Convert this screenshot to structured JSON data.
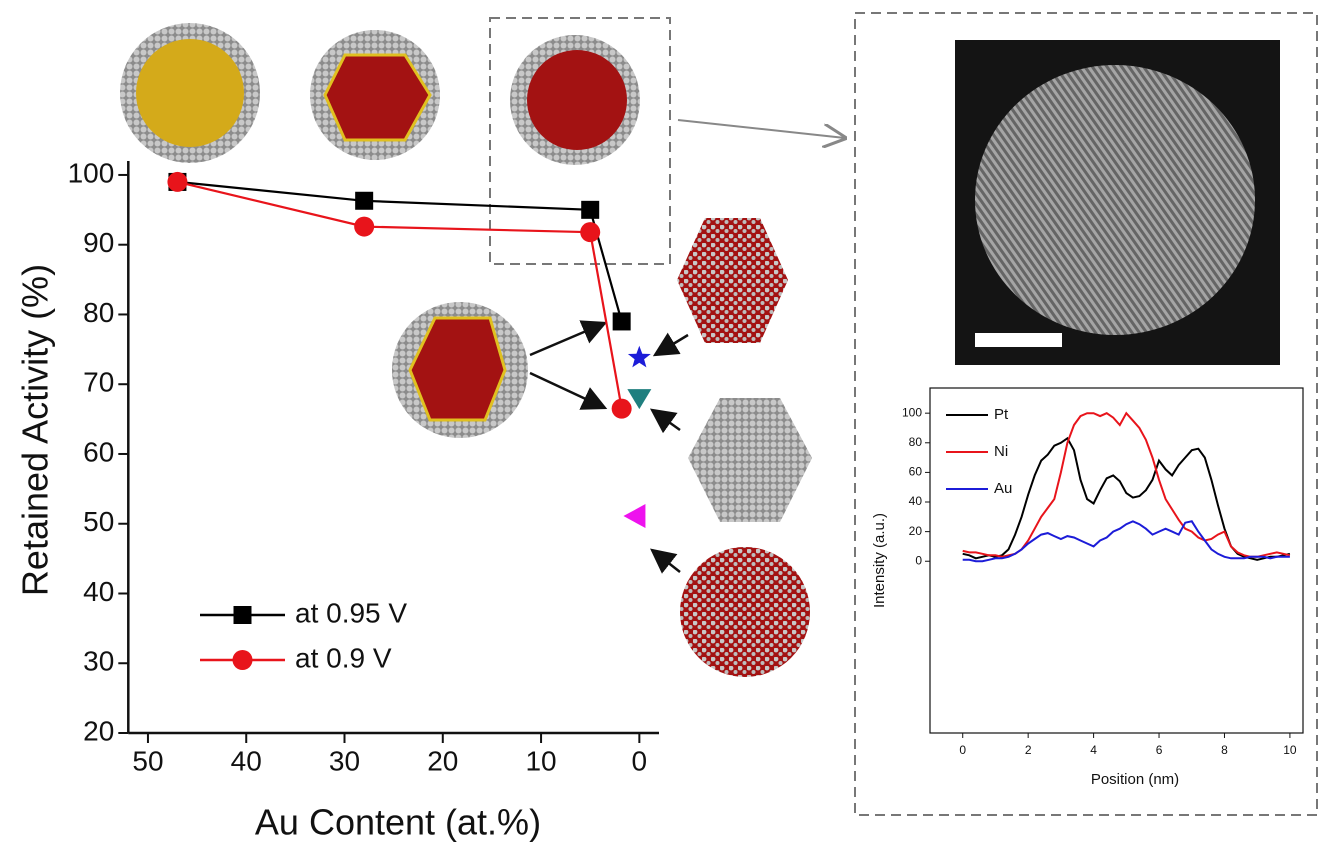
{
  "chart_data": [
    {
      "type": "line",
      "xlabel": "Au Content (at.%)",
      "ylabel": "Retained Activity (%)",
      "x": [
        47,
        28,
        5,
        1.8
      ],
      "series": [
        {
          "name": "at 0.95 V",
          "color": "#000000",
          "marker": "square",
          "values": [
            99,
            96.3,
            95,
            79
          ]
        },
        {
          "name": "at 0.9 V",
          "color": "#e8141b",
          "marker": "circle",
          "values": [
            99,
            92.6,
            91.8,
            66.5
          ]
        }
      ],
      "markers": [
        {
          "x": 0,
          "y": 73.8,
          "color": "#1c1cd8",
          "shape": "star"
        },
        {
          "x": 0,
          "y": 68,
          "color": "#1f7f7f",
          "shape": "triangle-down"
        },
        {
          "x": 0.5,
          "y": 51.1,
          "color": "#ee12ee",
          "shape": "triangle-left"
        }
      ],
      "xlim": [
        52,
        -2
      ],
      "xticks": [
        50,
        40,
        30,
        20,
        10,
        0
      ],
      "ylim": [
        20,
        102
      ],
      "yticks": [
        20,
        30,
        40,
        50,
        60,
        70,
        80,
        90,
        100
      ],
      "legend": "lower-left"
    },
    {
      "type": "line",
      "xlabel": "Position (nm)",
      "ylabel": "Intensity (a.u.)",
      "x": [
        0,
        0.2,
        0.4,
        0.6,
        0.8,
        1,
        1.2,
        1.4,
        1.6,
        1.8,
        2,
        2.2,
        2.4,
        2.6,
        2.8,
        3,
        3.2,
        3.4,
        3.6,
        3.8,
        4,
        4.2,
        4.4,
        4.6,
        4.8,
        5,
        5.2,
        5.4,
        5.6,
        5.8,
        6,
        6.2,
        6.4,
        6.6,
        6.8,
        7,
        7.2,
        7.4,
        7.6,
        7.8,
        8,
        8.2,
        8.4,
        8.6,
        8.8,
        9,
        9.2,
        9.4,
        9.6,
        9.8,
        10
      ],
      "series": [
        {
          "name": "Pt",
          "color": "#000000",
          "values": [
            5,
            4,
            2,
            3,
            4,
            3,
            4,
            8,
            18,
            30,
            45,
            58,
            68,
            72,
            78,
            80,
            83,
            75,
            55,
            42,
            39,
            48,
            56,
            58,
            54,
            46,
            43,
            44,
            48,
            55,
            68,
            62,
            58,
            65,
            70,
            75,
            76,
            70,
            55,
            38,
            22,
            10,
            5,
            3,
            2,
            1,
            2,
            3,
            3,
            4,
            5
          ]
        },
        {
          "name": "Ni",
          "color": "#e8141b",
          "values": [
            7,
            6,
            6,
            5,
            4,
            4,
            3,
            4,
            5,
            8,
            14,
            22,
            30,
            36,
            42,
            60,
            80,
            92,
            98,
            100,
            100,
            98,
            100,
            97,
            92,
            100,
            95,
            90,
            82,
            70,
            55,
            42,
            35,
            28,
            22,
            20,
            16,
            14,
            15,
            18,
            20,
            10,
            6,
            4,
            3,
            3,
            4,
            5,
            6,
            5,
            4
          ]
        },
        {
          "name": "Au",
          "color": "#1c1cd8",
          "values": [
            1,
            1,
            0,
            0,
            1,
            2,
            2,
            3,
            5,
            8,
            12,
            15,
            18,
            19,
            17,
            15,
            17,
            16,
            14,
            12,
            10,
            14,
            16,
            20,
            22,
            25,
            27,
            25,
            22,
            18,
            20,
            22,
            20,
            18,
            26,
            27,
            20,
            14,
            8,
            5,
            3,
            2,
            2,
            2,
            3,
            3,
            3,
            2,
            3,
            3,
            3
          ]
        }
      ],
      "xlim": [
        -1,
        10.4
      ],
      "xticks": [
        0,
        2,
        4,
        6,
        8,
        10
      ],
      "ylim": [
        -116,
        117
      ],
      "yticks": [
        0,
        20,
        40,
        60,
        80,
        100
      ],
      "legend": "upper-left"
    }
  ]
}
